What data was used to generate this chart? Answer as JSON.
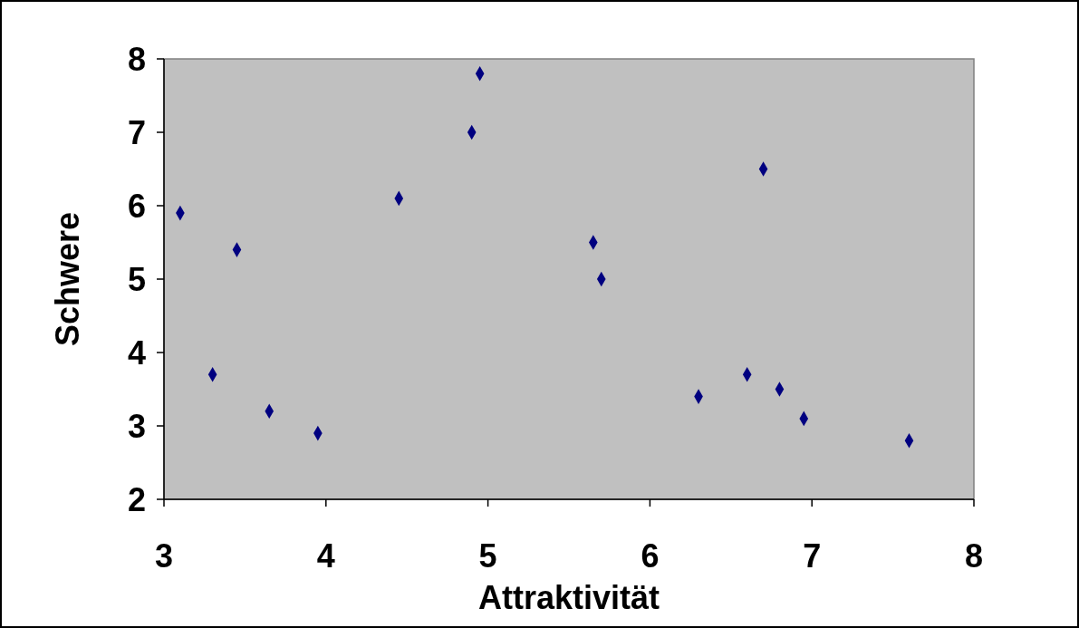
{
  "chart_data": {
    "type": "scatter",
    "xlabel": "Attraktivität",
    "ylabel": "Schwere",
    "x": [
      3.1,
      3.3,
      3.45,
      3.65,
      3.95,
      4.45,
      4.9,
      4.95,
      5.65,
      5.7,
      6.3,
      6.6,
      6.7,
      6.8,
      6.95,
      7.6
    ],
    "series": [
      {
        "color": "#000080",
        "values": [
          5.9,
          3.7,
          5.4,
          3.2,
          2.9,
          6.1,
          7.0,
          7.8,
          5.5,
          5.0,
          3.4,
          3.7,
          6.5,
          3.5,
          3.1,
          2.8
        ]
      }
    ],
    "xlim": [
      3,
      8
    ],
    "ylim": [
      2,
      8
    ],
    "xticks": [
      3,
      4,
      5,
      6,
      7,
      8
    ],
    "yticks": [
      2,
      3,
      4,
      5,
      6,
      7,
      8
    ],
    "grid": false,
    "marker": "diamond"
  }
}
